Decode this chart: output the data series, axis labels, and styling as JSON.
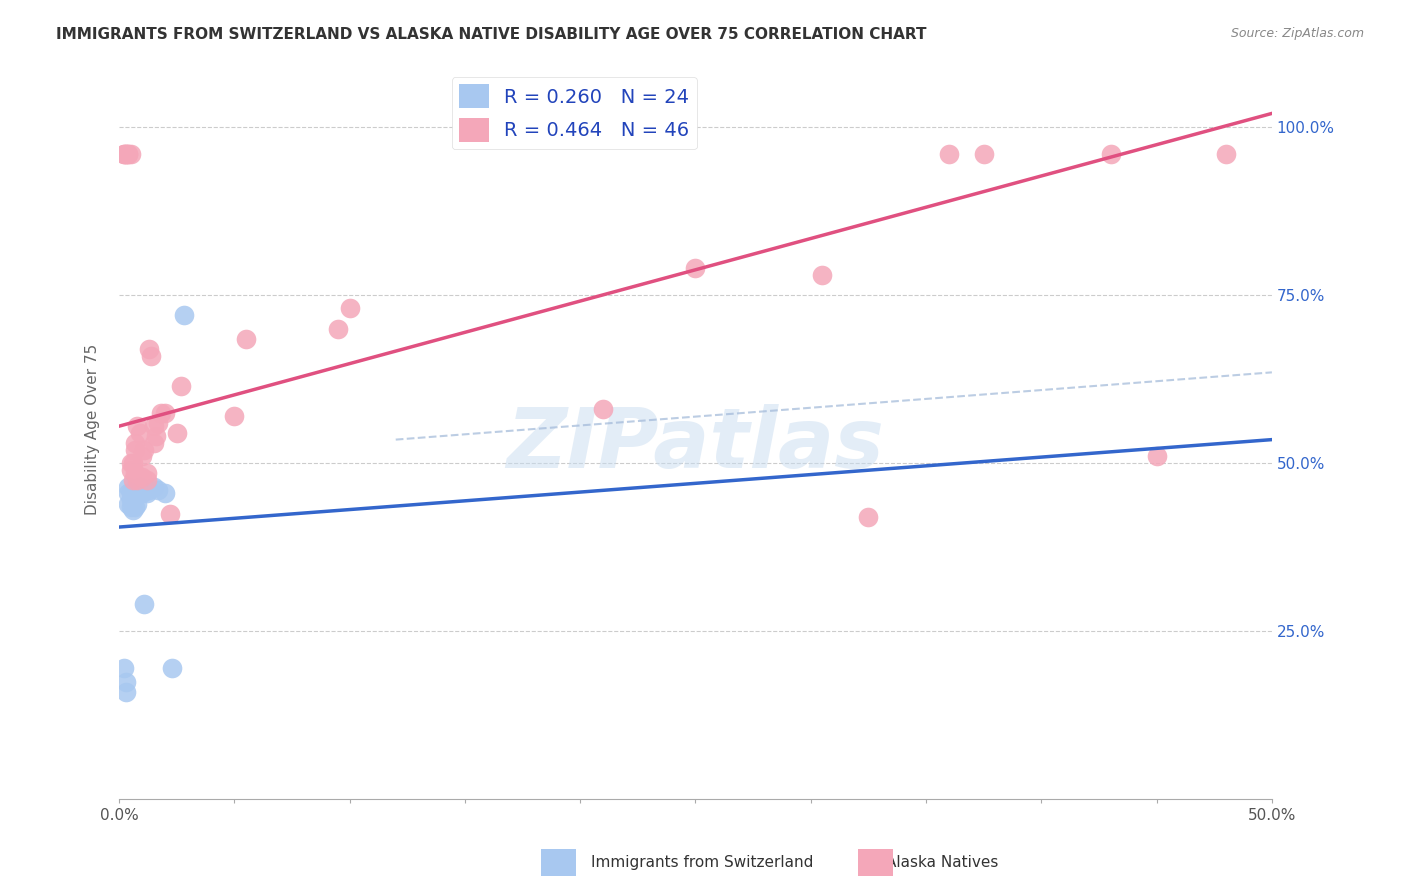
{
  "title": "IMMIGRANTS FROM SWITZERLAND VS ALASKA NATIVE DISABILITY AGE OVER 75 CORRELATION CHART",
  "source": "Source: ZipAtlas.com",
  "ylabel": "Disability Age Over 75",
  "watermark": "ZIPatlas",
  "xmin": 0.0,
  "xmax": 0.5,
  "ymin": 0.0,
  "ymax": 1.1,
  "xticks": [
    0.0,
    0.05,
    0.1,
    0.15,
    0.2,
    0.25,
    0.3,
    0.35,
    0.4,
    0.45,
    0.5
  ],
  "xtick_labels": [
    "0.0%",
    "",
    "",
    "",
    "",
    "",
    "",
    "",
    "",
    "",
    "50.0%"
  ],
  "yticks": [
    0.25,
    0.5,
    0.75,
    1.0
  ],
  "ytick_labels": [
    "25.0%",
    "50.0%",
    "75.0%",
    "100.0%"
  ],
  "legend1_label": "R = 0.260   N = 24",
  "legend2_label": "R = 0.464   N = 46",
  "legend_color1": "#A8C8F0",
  "legend_color2": "#F4A7B9",
  "line_color1": "#3366CC",
  "line_color2": "#E05080",
  "scatter_color1": "#A8C8F0",
  "scatter_color2": "#F4A7B9",
  "blue_scatter_x": [
    0.002,
    0.003,
    0.003,
    0.004,
    0.004,
    0.004,
    0.005,
    0.005,
    0.005,
    0.006,
    0.006,
    0.007,
    0.007,
    0.008,
    0.009,
    0.01,
    0.011,
    0.012,
    0.013,
    0.015,
    0.017,
    0.02,
    0.023,
    0.028
  ],
  "blue_scatter_y": [
    0.195,
    0.16,
    0.175,
    0.44,
    0.455,
    0.465,
    0.435,
    0.445,
    0.455,
    0.43,
    0.445,
    0.45,
    0.435,
    0.44,
    0.465,
    0.455,
    0.29,
    0.455,
    0.46,
    0.465,
    0.46,
    0.455,
    0.195,
    0.72
  ],
  "pink_scatter_x": [
    0.002,
    0.002,
    0.003,
    0.003,
    0.004,
    0.004,
    0.005,
    0.005,
    0.005,
    0.006,
    0.006,
    0.007,
    0.007,
    0.007,
    0.008,
    0.008,
    0.009,
    0.01,
    0.01,
    0.011,
    0.012,
    0.012,
    0.013,
    0.014,
    0.015,
    0.015,
    0.016,
    0.017,
    0.018,
    0.02,
    0.022,
    0.025,
    0.027,
    0.05,
    0.055,
    0.095,
    0.1,
    0.21,
    0.25,
    0.305,
    0.325,
    0.36,
    0.375,
    0.43,
    0.45,
    0.48
  ],
  "pink_scatter_y": [
    0.96,
    0.96,
    0.96,
    0.96,
    0.96,
    0.96,
    0.96,
    0.49,
    0.5,
    0.475,
    0.5,
    0.485,
    0.52,
    0.53,
    0.555,
    0.475,
    0.545,
    0.51,
    0.48,
    0.52,
    0.485,
    0.475,
    0.67,
    0.66,
    0.555,
    0.53,
    0.54,
    0.56,
    0.575,
    0.575,
    0.425,
    0.545,
    0.615,
    0.57,
    0.685,
    0.7,
    0.73,
    0.58,
    0.79,
    0.78,
    0.42,
    0.96,
    0.96,
    0.96,
    0.51,
    0.96
  ],
  "blue_line_x0": 0.0,
  "blue_line_y0": 0.405,
  "blue_line_x1": 0.5,
  "blue_line_y1": 0.535,
  "pink_line_x0": 0.0,
  "pink_line_y0": 0.555,
  "pink_line_x1": 0.5,
  "pink_line_y1": 1.02,
  "dash_line_x0": 0.12,
  "dash_line_y0": 0.535,
  "dash_line_x1": 0.5,
  "dash_line_y1": 0.635
}
